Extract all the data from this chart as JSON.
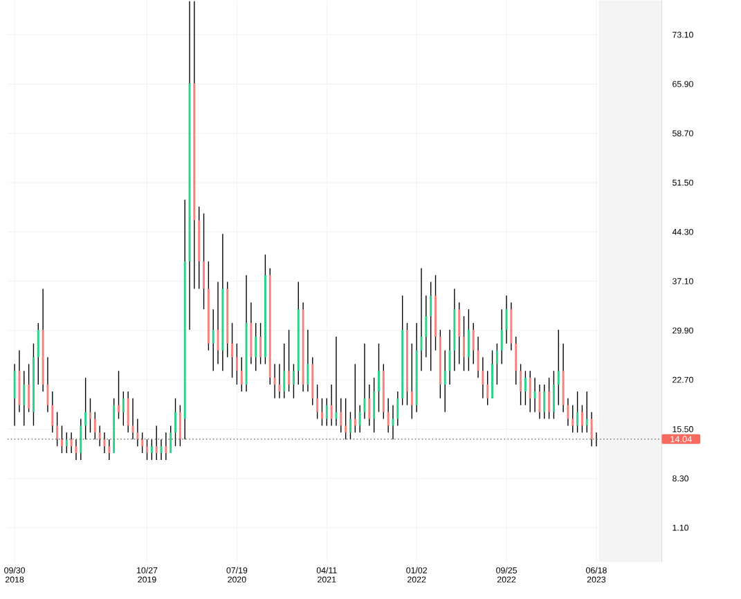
{
  "chart_data": {
    "type": "candlestick",
    "x": [
      "2018-09-30",
      "2018-10-14",
      "2018-10-28",
      "2018-11-11",
      "2018-11-25",
      "2018-12-09",
      "2018-12-23",
      "2019-01-06",
      "2019-01-20",
      "2019-02-03",
      "2019-02-17",
      "2019-03-03",
      "2019-03-17",
      "2019-03-31",
      "2019-04-14",
      "2019-04-28",
      "2019-05-12",
      "2019-05-26",
      "2019-06-09",
      "2019-06-23",
      "2019-07-07",
      "2019-07-21",
      "2019-08-04",
      "2019-08-18",
      "2019-09-01",
      "2019-09-15",
      "2019-09-29",
      "2019-10-13",
      "2019-10-27",
      "2019-11-10",
      "2019-11-24",
      "2019-12-08",
      "2019-12-22",
      "2020-01-05",
      "2020-01-19",
      "2020-02-02",
      "2020-02-16",
      "2020-03-01",
      "2020-03-15",
      "2020-03-29",
      "2020-04-12",
      "2020-04-26",
      "2020-05-10",
      "2020-05-24",
      "2020-06-07",
      "2020-06-21",
      "2020-07-05",
      "2020-07-19",
      "2020-08-02",
      "2020-08-16",
      "2020-08-30",
      "2020-09-13",
      "2020-09-27",
      "2020-10-11",
      "2020-10-25",
      "2020-11-08",
      "2020-11-22",
      "2020-12-06",
      "2020-12-20",
      "2021-01-03",
      "2021-01-17",
      "2021-01-31",
      "2021-02-14",
      "2021-02-28",
      "2021-03-14",
      "2021-03-28",
      "2021-04-11",
      "2021-04-25",
      "2021-05-09",
      "2021-05-23",
      "2021-06-06",
      "2021-06-20",
      "2021-07-04",
      "2021-07-18",
      "2021-08-01",
      "2021-08-15",
      "2021-08-29",
      "2021-09-12",
      "2021-09-26",
      "2021-10-10",
      "2021-10-24",
      "2021-11-07",
      "2021-11-21",
      "2021-12-05",
      "2021-12-19",
      "2022-01-02",
      "2022-01-16",
      "2022-01-30",
      "2022-02-13",
      "2022-02-27",
      "2022-03-13",
      "2022-03-27",
      "2022-04-10",
      "2022-04-24",
      "2022-05-08",
      "2022-05-22",
      "2022-06-05",
      "2022-06-19",
      "2022-07-03",
      "2022-07-17",
      "2022-07-31",
      "2022-08-14",
      "2022-08-28",
      "2022-09-11",
      "2022-09-25",
      "2022-10-09",
      "2022-10-23",
      "2022-11-06",
      "2022-11-20",
      "2022-12-04",
      "2022-12-18",
      "2023-01-01",
      "2023-01-15",
      "2023-01-29",
      "2023-02-12",
      "2023-02-26",
      "2023-03-12",
      "2023-03-26",
      "2023-04-09",
      "2023-04-23",
      "2023-05-07",
      "2023-05-21",
      "2023-06-04",
      "2023-06-18"
    ],
    "ohlc": [
      [
        20,
        25,
        16,
        24
      ],
      [
        24,
        27,
        18,
        19
      ],
      [
        19,
        24,
        16,
        22
      ],
      [
        22,
        25,
        18,
        18.5
      ],
      [
        18,
        28,
        16,
        26
      ],
      [
        26,
        31,
        22,
        30
      ],
      [
        30,
        36,
        21,
        22
      ],
      [
        22,
        26,
        18,
        19
      ],
      [
        19,
        21,
        15,
        16
      ],
      [
        16,
        18,
        13,
        14
      ],
      [
        14,
        16,
        12,
        13
      ],
      [
        13,
        15,
        12,
        14
      ],
      [
        14,
        15,
        12,
        13
      ],
      [
        13,
        14,
        11,
        12
      ],
      [
        12,
        17,
        11,
        16
      ],
      [
        16,
        23,
        14,
        18
      ],
      [
        18,
        20,
        15,
        17
      ],
      [
        17,
        18,
        14,
        15
      ],
      [
        15,
        16,
        13,
        14
      ],
      [
        14,
        15,
        12,
        13
      ],
      [
        13,
        14,
        11,
        12
      ],
      [
        12,
        20,
        12,
        19
      ],
      [
        19,
        24,
        17,
        18
      ],
      [
        18,
        21,
        16,
        20
      ],
      [
        20,
        21,
        15,
        16
      ],
      [
        16,
        20,
        14,
        15
      ],
      [
        15,
        17,
        13,
        14
      ],
      [
        14,
        15,
        12,
        13
      ],
      [
        13,
        14,
        11,
        12
      ],
      [
        12,
        14,
        11,
        13
      ],
      [
        13,
        16,
        11,
        12
      ],
      [
        12,
        14,
        11,
        13
      ],
      [
        13,
        15,
        11,
        12
      ],
      [
        12,
        16,
        12,
        15
      ],
      [
        15,
        20,
        13,
        18
      ],
      [
        18,
        19,
        13,
        14
      ],
      [
        17,
        49,
        14,
        40
      ],
      [
        40,
        78,
        30,
        66
      ],
      [
        66,
        78,
        36,
        46
      ],
      [
        46,
        48,
        36,
        40
      ],
      [
        40,
        47,
        33,
        36
      ],
      [
        36,
        40,
        27,
        28
      ],
      [
        28,
        33,
        24,
        30
      ],
      [
        30,
        37,
        25,
        27
      ],
      [
        27,
        44,
        24,
        36
      ],
      [
        36,
        37,
        26,
        28
      ],
      [
        28,
        31,
        23,
        26
      ],
      [
        26,
        28,
        22,
        24
      ],
      [
        24,
        26,
        21,
        22
      ],
      [
        22,
        38,
        21,
        31
      ],
      [
        31,
        34,
        25,
        26
      ],
      [
        26,
        31,
        24,
        29
      ],
      [
        29,
        31,
        25,
        26
      ],
      [
        26,
        41,
        25,
        38
      ],
      [
        38,
        39,
        22,
        23
      ],
      [
        23,
        25,
        20,
        22
      ],
      [
        22,
        25,
        20,
        21
      ],
      [
        21,
        28,
        20,
        24
      ],
      [
        24,
        30,
        21,
        22
      ],
      [
        22,
        25,
        20,
        24
      ],
      [
        24,
        37,
        22,
        33
      ],
      [
        33,
        34,
        21,
        22
      ],
      [
        22,
        30,
        21,
        25
      ],
      [
        25,
        26,
        19,
        20
      ],
      [
        20,
        22,
        17,
        18
      ],
      [
        18,
        20,
        16,
        17
      ],
      [
        17,
        20,
        16,
        19
      ],
      [
        19,
        22,
        16,
        17
      ],
      [
        17,
        29,
        16,
        18
      ],
      [
        18,
        20,
        15,
        16
      ],
      [
        16,
        20,
        14,
        15
      ],
      [
        15,
        18,
        14,
        17
      ],
      [
        17,
        25,
        15,
        16
      ],
      [
        16,
        19,
        15,
        18
      ],
      [
        18,
        28,
        17,
        20
      ],
      [
        20,
        22,
        16,
        17
      ],
      [
        17,
        23,
        15,
        21
      ],
      [
        21,
        28,
        18,
        24
      ],
      [
        24,
        25,
        17,
        18
      ],
      [
        18,
        20,
        15,
        16
      ],
      [
        16,
        19,
        14,
        17
      ],
      [
        17,
        21,
        16,
        20
      ],
      [
        20,
        35,
        19,
        30
      ],
      [
        30,
        31,
        19,
        21
      ],
      [
        21,
        28,
        17,
        19
      ],
      [
        19,
        31,
        18,
        27
      ],
      [
        27,
        39,
        24,
        29
      ],
      [
        29,
        35,
        26,
        32
      ],
      [
        32,
        37,
        24,
        35
      ],
      [
        35,
        38,
        27,
        29
      ],
      [
        29,
        30,
        20,
        22
      ],
      [
        22,
        27,
        18,
        24
      ],
      [
        24,
        30,
        22,
        27
      ],
      [
        27,
        36,
        24,
        33
      ],
      [
        33,
        34,
        25,
        29
      ],
      [
        29,
        32,
        24,
        26
      ],
      [
        26,
        33,
        24,
        30
      ],
      [
        30,
        31,
        25,
        27
      ],
      [
        27,
        29,
        23,
        24
      ],
      [
        24,
        26,
        20,
        22
      ],
      [
        22,
        24,
        19,
        20
      ],
      [
        20,
        27,
        20,
        25
      ],
      [
        25,
        28,
        22,
        27
      ],
      [
        27,
        33,
        25,
        30
      ],
      [
        30,
        35,
        28,
        33
      ],
      [
        33,
        34,
        27,
        28
      ],
      [
        28,
        29,
        22,
        24
      ],
      [
        24,
        25,
        19,
        21
      ],
      [
        21,
        24,
        19,
        23
      ],
      [
        23,
        24,
        18,
        20
      ],
      [
        20,
        23,
        18,
        21
      ],
      [
        21,
        22,
        17,
        18
      ],
      [
        18,
        22,
        17,
        21
      ],
      [
        21,
        23,
        17,
        18
      ],
      [
        18,
        24,
        17,
        22
      ],
      [
        22,
        30,
        19,
        24
      ],
      [
        24,
        28,
        18,
        19
      ],
      [
        19,
        20,
        16,
        17
      ],
      [
        17,
        19,
        15,
        16
      ],
      [
        16,
        21,
        15,
        18
      ],
      [
        18,
        19,
        15,
        16
      ],
      [
        16,
        21,
        15,
        17
      ],
      [
        17,
        18,
        13,
        14
      ],
      [
        14,
        15,
        13,
        14.04
      ]
    ],
    "colors": [
      "#2ed18a",
      "#f4837d",
      "#2ed18a",
      "#f4837d",
      "#2ed18a",
      "#2ed18a",
      "#f4837d",
      "#f4837d",
      "#f4837d",
      "#f4837d",
      "#f4837d",
      "#2ed18a",
      "#f4837d",
      "#f4837d",
      "#2ed18a",
      "#2ed18a",
      "#f4837d",
      "#f4837d",
      "#f4837d",
      "#f4837d",
      "#f4837d",
      "#2ed18a",
      "#f4837d",
      "#2ed18a",
      "#f4837d",
      "#f4837d",
      "#f4837d",
      "#f4837d",
      "#f4837d",
      "#2ed18a",
      "#f4837d",
      "#2ed18a",
      "#f4837d",
      "#2ed18a",
      "#2ed18a",
      "#f4837d",
      "#2ed18a",
      "#2ed18a",
      "#f4837d",
      "#f4837d",
      "#f4837d",
      "#f4837d",
      "#2ed18a",
      "#f4837d",
      "#2ed18a",
      "#f4837d",
      "#f4837d",
      "#f4837d",
      "#f4837d",
      "#2ed18a",
      "#f4837d",
      "#2ed18a",
      "#f4837d",
      "#2ed18a",
      "#f4837d",
      "#f4837d",
      "#f4837d",
      "#2ed18a",
      "#f4837d",
      "#2ed18a",
      "#2ed18a",
      "#f4837d",
      "#2ed18a",
      "#f4837d",
      "#f4837d",
      "#f4837d",
      "#2ed18a",
      "#f4837d",
      "#2ed18a",
      "#f4837d",
      "#f4837d",
      "#2ed18a",
      "#f4837d",
      "#2ed18a",
      "#2ed18a",
      "#f4837d",
      "#2ed18a",
      "#2ed18a",
      "#f4837d",
      "#f4837d",
      "#2ed18a",
      "#2ed18a",
      "#2ed18a",
      "#f4837d",
      "#f4837d",
      "#2ed18a",
      "#2ed18a",
      "#2ed18a",
      "#2ed18a",
      "#f4837d",
      "#f4837d",
      "#2ed18a",
      "#2ed18a",
      "#2ed18a",
      "#f4837d",
      "#f4837d",
      "#2ed18a",
      "#f4837d",
      "#f4837d",
      "#f4837d",
      "#f4837d",
      "#2ed18a",
      "#2ed18a",
      "#2ed18a",
      "#2ed18a",
      "#f4837d",
      "#f4837d",
      "#f4837d",
      "#2ed18a",
      "#f4837d",
      "#2ed18a",
      "#f4837d",
      "#2ed18a",
      "#f4837d",
      "#2ed18a",
      "#2ed18a",
      "#f4837d",
      "#f4837d",
      "#f4837d",
      "#2ed18a",
      "#f4837d",
      "#2ed18a",
      "#f4837d",
      "#2ed18a"
    ],
    "xlim": [
      "2018-09-09",
      "2023-12-28"
    ],
    "xticks": [
      {
        "value": "2018-09-30",
        "label": "09/30 2018"
      },
      {
        "value": "2019-10-27",
        "label": "10/27 2019"
      },
      {
        "value": "2020-07-19",
        "label": "07/19 2020"
      },
      {
        "value": "2021-04-11",
        "label": "04/11 2021"
      },
      {
        "value": "2022-01-02",
        "label": "01/02 2022"
      },
      {
        "value": "2022-09-25",
        "label": "09/25 2022"
      },
      {
        "value": "2023-06-18",
        "label": "06/18 2023"
      }
    ],
    "ylim": [
      -3.9,
      78.1
    ],
    "yticks": [
      {
        "value": 1.1,
        "label": "1.10"
      },
      {
        "value": 8.3,
        "label": "8.30"
      },
      {
        "value": 15.5,
        "label": "15.50"
      },
      {
        "value": 22.7,
        "label": "22.70"
      },
      {
        "value": 29.9,
        "label": "29.90"
      },
      {
        "value": 37.1,
        "label": "37.10"
      },
      {
        "value": 44.3,
        "label": "44.30"
      },
      {
        "value": 51.5,
        "label": "51.50"
      },
      {
        "value": 58.7,
        "label": "58.70"
      },
      {
        "value": 65.9,
        "label": "65.90"
      },
      {
        "value": 73.1,
        "label": "73.10"
      }
    ],
    "grid": true,
    "ref_lines": [
      {
        "axis": "y",
        "value": 14.04,
        "label": "14.04",
        "color": "#555555",
        "line_style": "dotted"
      }
    ],
    "bands": [
      {
        "axis": "x",
        "from": "2023-06-25",
        "to": "2023-12-28",
        "color": "#f4f4f4"
      }
    ]
  }
}
